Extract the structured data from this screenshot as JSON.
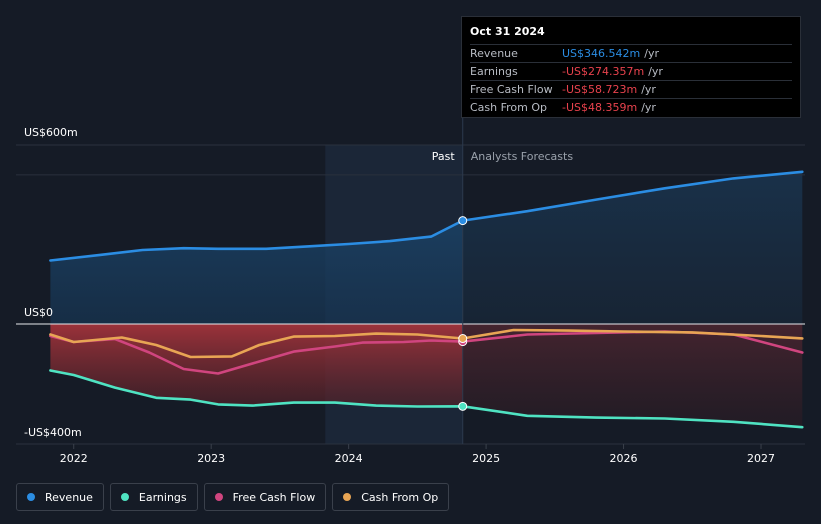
{
  "chart_data": {
    "type": "line",
    "y_labels": {
      "top": "US$600m",
      "zero": "US$0",
      "bottom": "-US$400m"
    },
    "ylim": [
      -400,
      600
    ],
    "x_ticks": [
      {
        "label": "2022",
        "x": 2022.0
      },
      {
        "label": "2023",
        "x": 2023.0
      },
      {
        "label": "2024",
        "x": 2024.0
      },
      {
        "label": "2025",
        "x": 2025.0
      },
      {
        "label": "2026",
        "x": 2026.0
      },
      {
        "label": "2027",
        "x": 2027.0
      }
    ],
    "past_label": "Past",
    "forecast_label": "Analysts Forecasts",
    "divider_x": 2024.83,
    "series": [
      {
        "name": "Revenue",
        "key": "revenue",
        "color": "#2b8de3",
        "points": [
          [
            2021.83,
            213
          ],
          [
            2022.2,
            232
          ],
          [
            2022.5,
            248
          ],
          [
            2022.8,
            254
          ],
          [
            2023.05,
            252
          ],
          [
            2023.4,
            252
          ],
          [
            2023.7,
            260
          ],
          [
            2024.0,
            268
          ],
          [
            2024.3,
            278
          ],
          [
            2024.6,
            293
          ],
          [
            2024.83,
            346.5
          ],
          [
            2025.3,
            378
          ],
          [
            2025.8,
            417
          ],
          [
            2026.3,
            455
          ],
          [
            2026.8,
            488
          ],
          [
            2027.3,
            510
          ]
        ]
      },
      {
        "name": "Earnings",
        "key": "earnings",
        "color": "#4fe3c2",
        "points": [
          [
            2021.83,
            -155
          ],
          [
            2022.0,
            -170
          ],
          [
            2022.3,
            -212
          ],
          [
            2022.6,
            -246
          ],
          [
            2022.85,
            -252
          ],
          [
            2023.05,
            -268
          ],
          [
            2023.3,
            -272
          ],
          [
            2023.6,
            -262
          ],
          [
            2023.9,
            -262
          ],
          [
            2024.2,
            -272
          ],
          [
            2024.5,
            -275
          ],
          [
            2024.83,
            -274.4
          ],
          [
            2025.3,
            -306
          ],
          [
            2025.8,
            -312
          ],
          [
            2026.3,
            -315
          ],
          [
            2026.8,
            -326
          ],
          [
            2027.3,
            -344
          ]
        ]
      },
      {
        "name": "Free Cash Flow",
        "key": "fcf",
        "color": "#d0457f",
        "points": [
          [
            2021.83,
            -40
          ],
          [
            2022.0,
            -60
          ],
          [
            2022.3,
            -50
          ],
          [
            2022.55,
            -95
          ],
          [
            2022.8,
            -150
          ],
          [
            2023.05,
            -165
          ],
          [
            2023.35,
            -125
          ],
          [
            2023.6,
            -92
          ],
          [
            2023.9,
            -75
          ],
          [
            2024.1,
            -62
          ],
          [
            2024.4,
            -60
          ],
          [
            2024.6,
            -55
          ],
          [
            2024.83,
            -58.7
          ],
          [
            2025.3,
            -35
          ],
          [
            2025.8,
            -30
          ],
          [
            2026.3,
            -25
          ],
          [
            2026.8,
            -35
          ],
          [
            2027.3,
            -95
          ]
        ]
      },
      {
        "name": "Cash From Op",
        "key": "cfo",
        "color": "#e8a554",
        "points": [
          [
            2021.83,
            -35
          ],
          [
            2022.0,
            -60
          ],
          [
            2022.35,
            -45
          ],
          [
            2022.6,
            -70
          ],
          [
            2022.85,
            -110
          ],
          [
            2023.15,
            -108
          ],
          [
            2023.35,
            -70
          ],
          [
            2023.6,
            -42
          ],
          [
            2023.9,
            -40
          ],
          [
            2024.2,
            -32
          ],
          [
            2024.5,
            -35
          ],
          [
            2024.83,
            -48.4
          ],
          [
            2025.2,
            -20
          ],
          [
            2025.6,
            -22
          ],
          [
            2026.0,
            -25
          ],
          [
            2026.5,
            -28
          ],
          [
            2027.0,
            -40
          ],
          [
            2027.3,
            -48
          ]
        ]
      }
    ],
    "highlight_x": 2024.83
  },
  "tooltip": {
    "date": "Oct 31 2024",
    "rows": [
      {
        "name": "Revenue",
        "value": "US$346.542m",
        "unit": "/yr",
        "color": "#2b8de3"
      },
      {
        "name": "Earnings",
        "value": "-US$274.357m",
        "unit": "/yr",
        "color": "#e8424d"
      },
      {
        "name": "Free Cash Flow",
        "value": "-US$58.723m",
        "unit": "/yr",
        "color": "#e8424d"
      },
      {
        "name": "Cash From Op",
        "value": "-US$48.359m",
        "unit": "/yr",
        "color": "#e8424d"
      }
    ]
  },
  "legend": [
    {
      "label": "Revenue",
      "color": "#2b8de3"
    },
    {
      "label": "Earnings",
      "color": "#4fe3c2"
    },
    {
      "label": "Free Cash Flow",
      "color": "#d0457f"
    },
    {
      "label": "Cash From Op",
      "color": "#e8a554"
    }
  ]
}
